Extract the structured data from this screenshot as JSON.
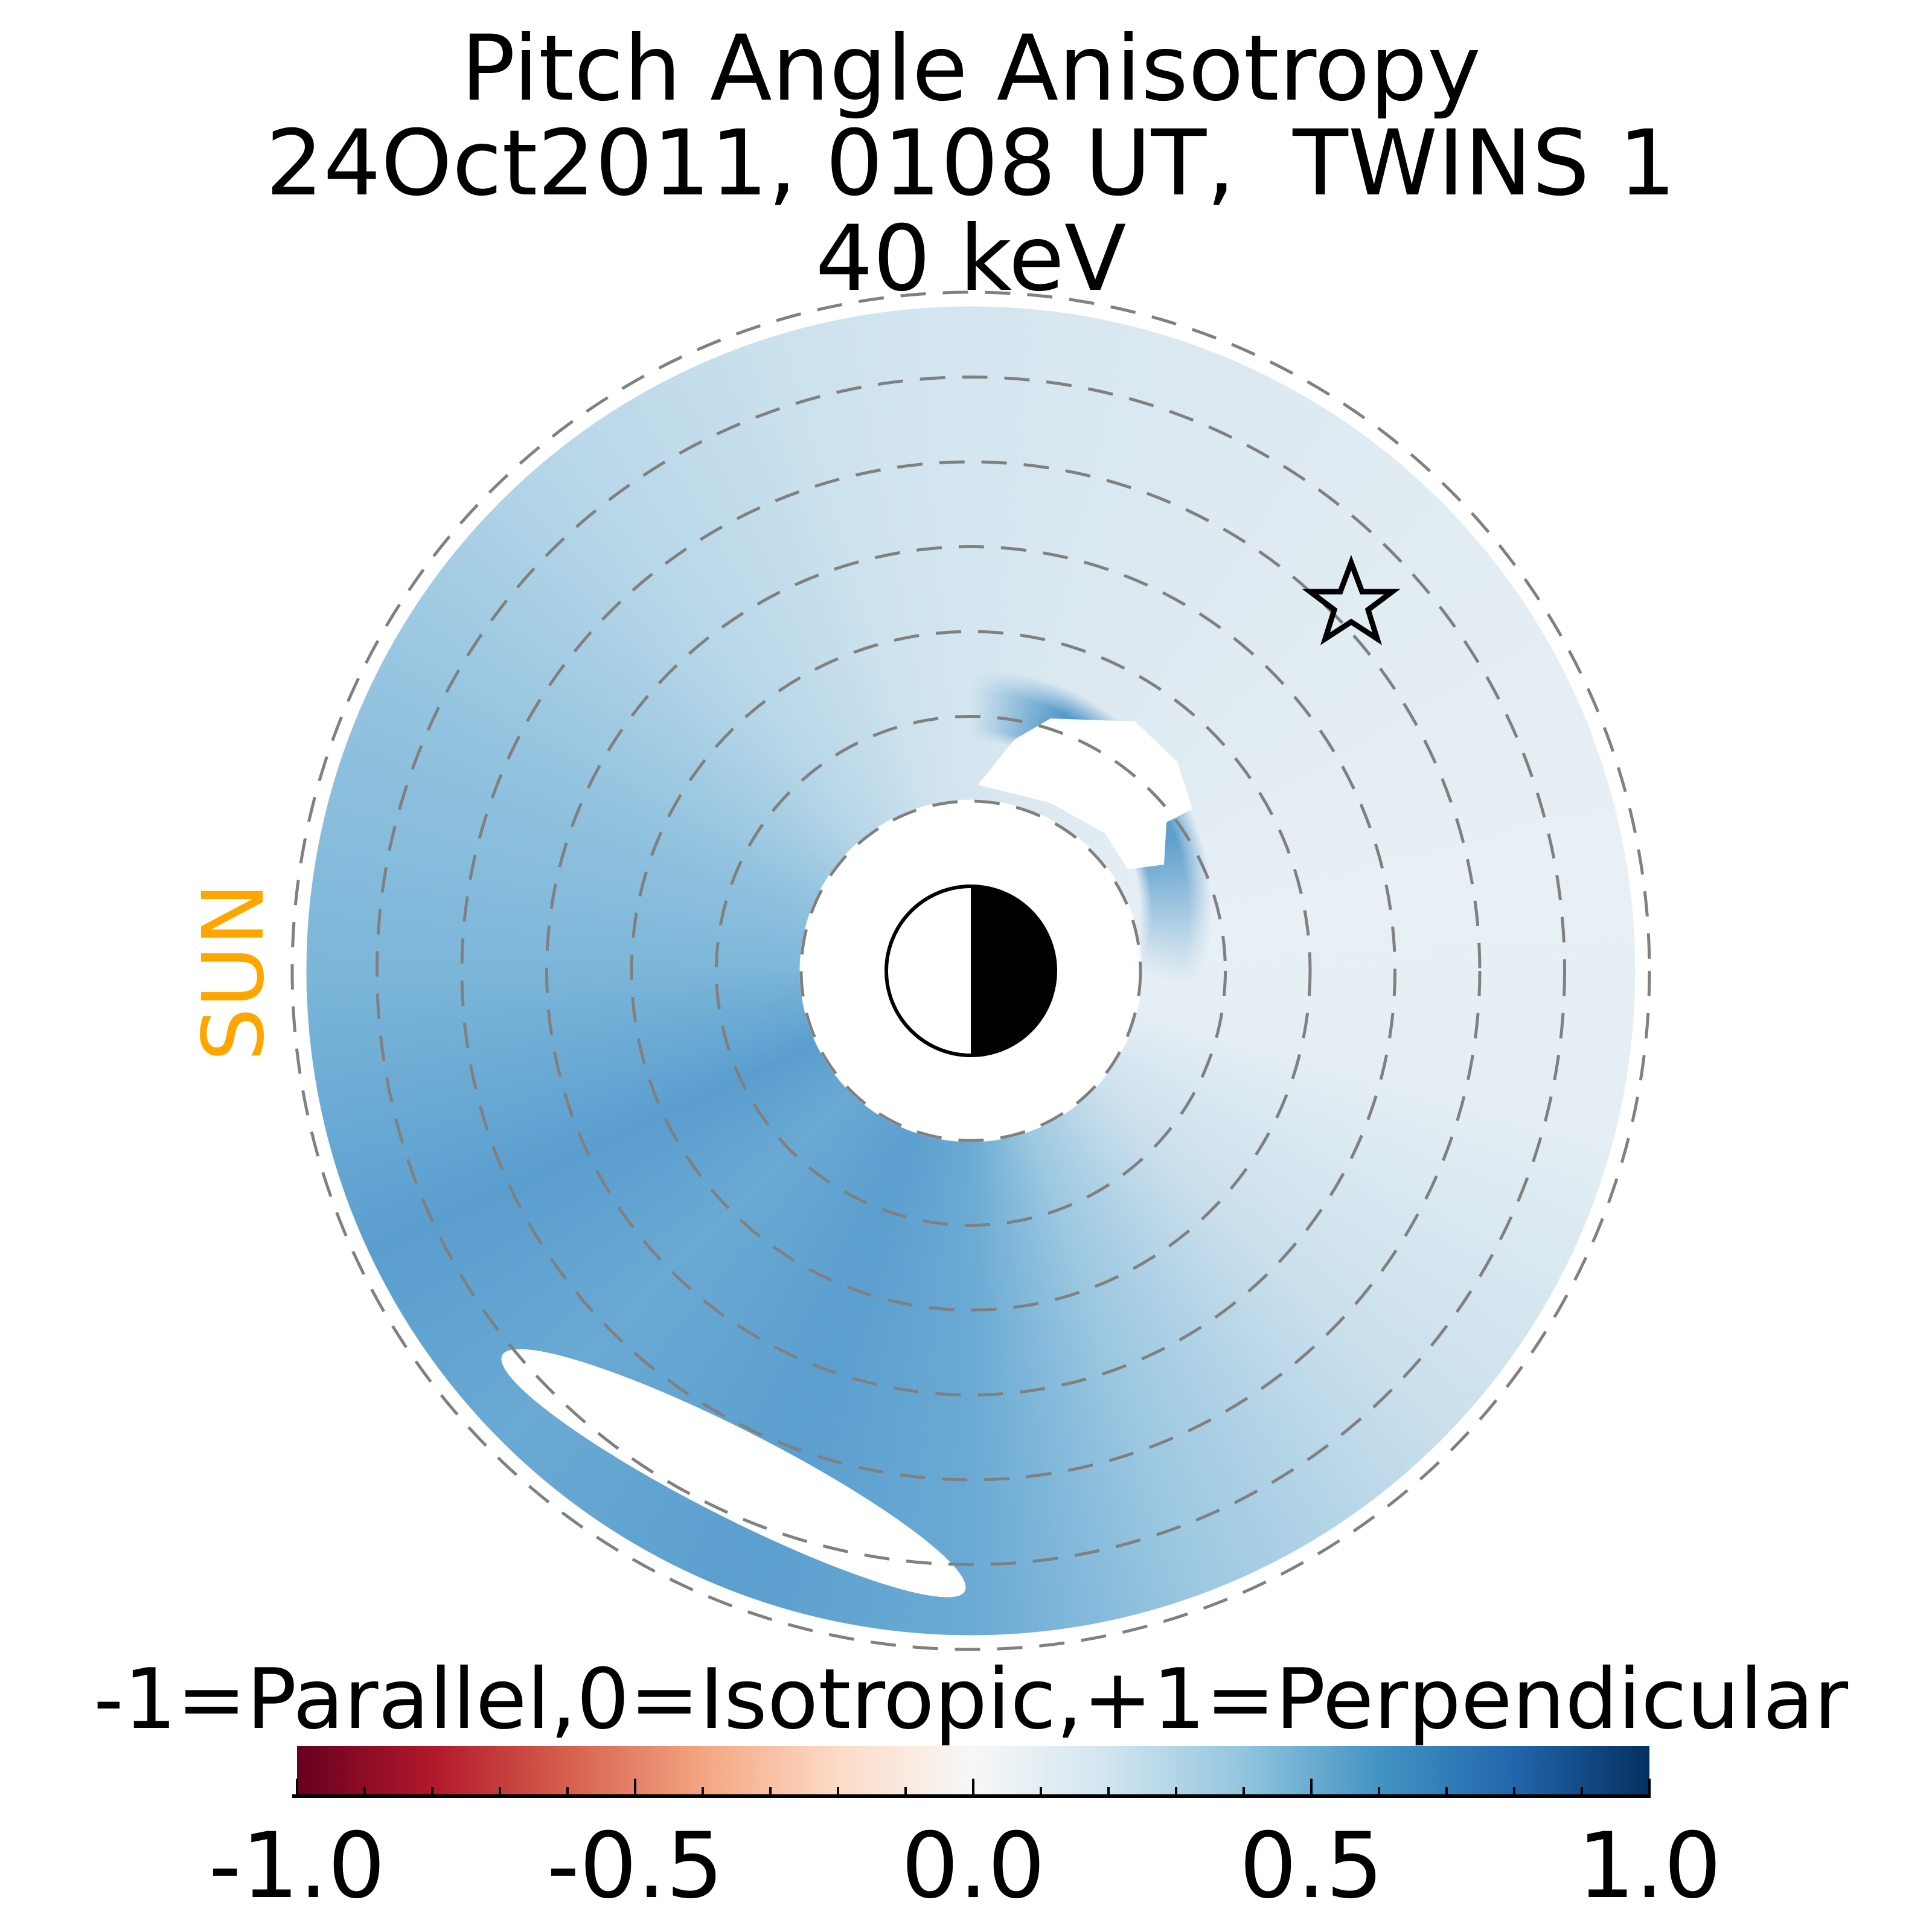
{
  "chart_data": {
    "type": "heatmap",
    "projection": "polar equatorial map centered on Earth",
    "title_lines": [
      "Pitch Angle Anisotropy",
      "24Oct2011, 0108 UT,  TWINS 1",
      "40 keV"
    ],
    "sun_label": "SUN",
    "ring_radii_re": [
      2,
      3,
      4,
      5,
      6,
      7,
      8
    ],
    "colorbar": {
      "label": "-1=Parallel,0=Isotropic,+1=Perpendicular",
      "range": [
        -1.0,
        1.0
      ],
      "colormap": "RdBu",
      "tick_values": [
        -1.0,
        -0.5,
        0.0,
        0.5,
        1.0
      ],
      "tick_labels": [
        "-1.0",
        "-0.5",
        "0.0",
        "0.5",
        "1.0"
      ],
      "minor_step": 0.1
    },
    "colors": {
      "sun": "#ffa500",
      "ring": "#808080"
    },
    "markers": [
      {
        "type": "star",
        "meaning": "spacecraft position"
      }
    ]
  }
}
